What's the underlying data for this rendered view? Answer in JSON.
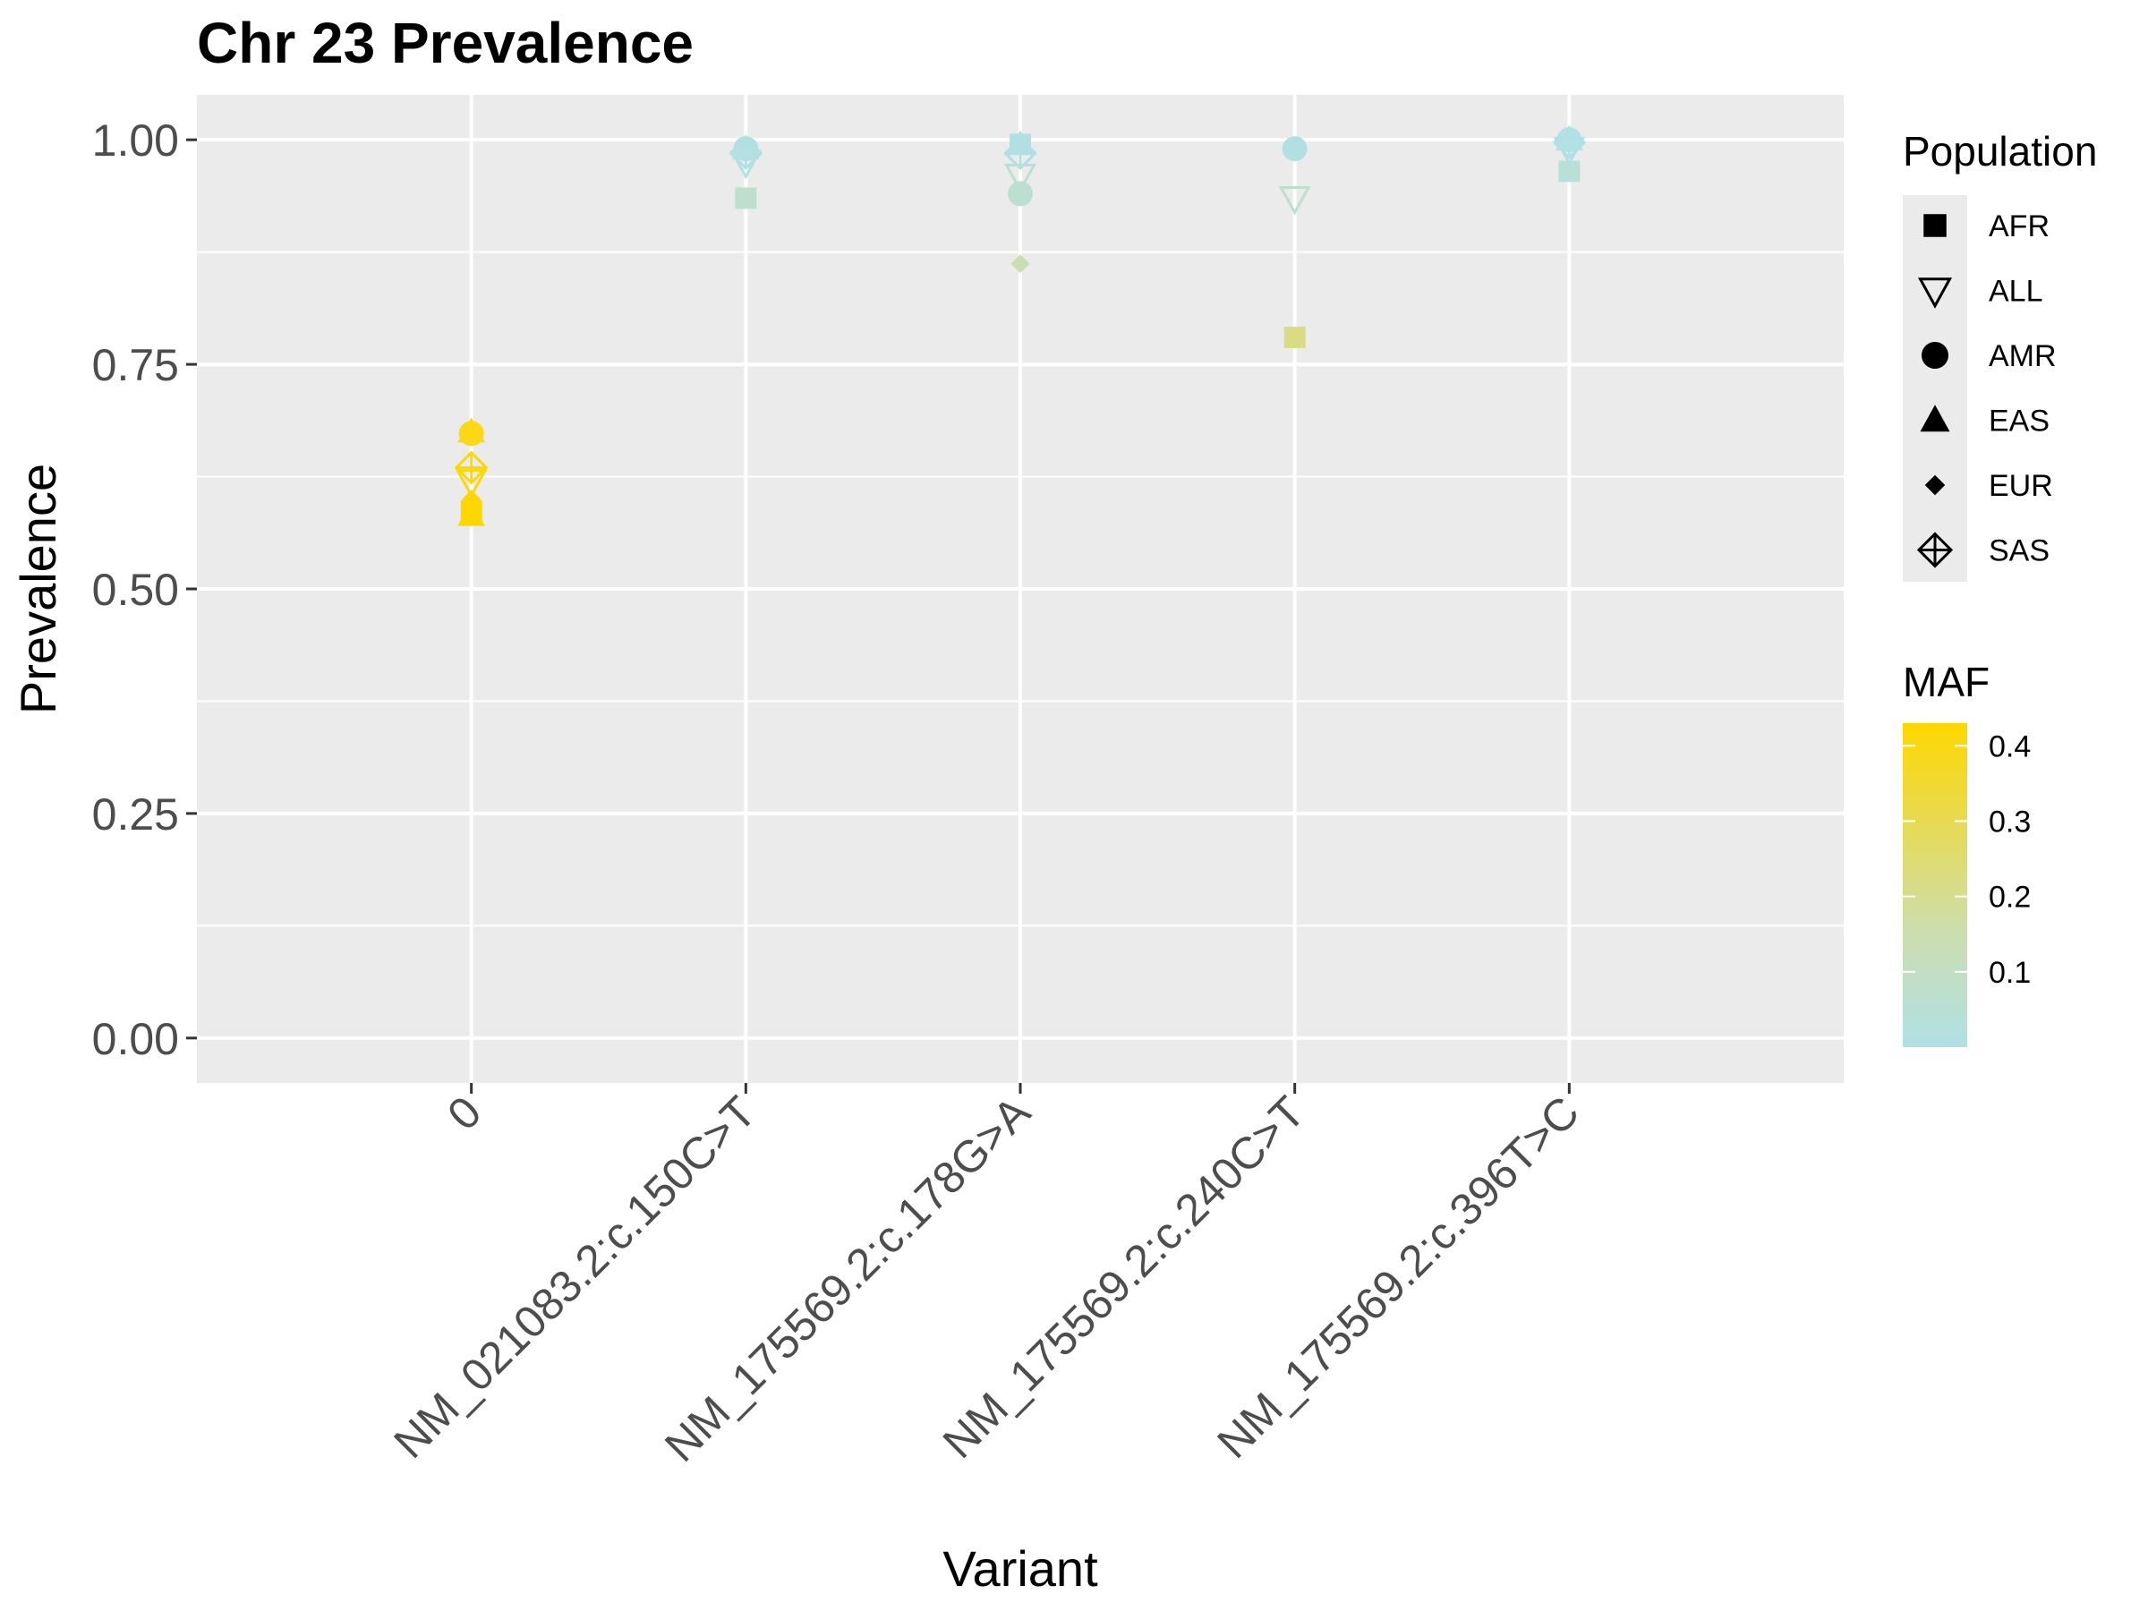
{
  "chart_data": {
    "type": "scatter",
    "title": "Chr 23 Prevalence",
    "xlabel": "Variant",
    "ylabel": "Prevalence",
    "ylim": [
      -0.05,
      1.05
    ],
    "yticks": [
      {
        "value": 0,
        "label": "0.00"
      },
      {
        "value": 0.25,
        "label": "0.25"
      },
      {
        "value": 0.5,
        "label": "0.50"
      },
      {
        "value": 0.75,
        "label": "0.75"
      },
      {
        "value": 1,
        "label": "1.00"
      }
    ],
    "grid": true,
    "categories": [
      "0",
      "NM_021083.2:c.150C>T",
      "NM_175569.2:c.178G>A",
      "NM_175569.2:c.240C>T",
      "NM_175569.2:c.396T>C"
    ],
    "legend_shape": {
      "title": "Population",
      "placement": "right",
      "items": [
        {
          "label": "AFR",
          "shape": "square"
        },
        {
          "label": "ALL",
          "shape": "triangle-down-open"
        },
        {
          "label": "AMR",
          "shape": "circle"
        },
        {
          "label": "EAS",
          "shape": "triangle"
        },
        {
          "label": "EUR",
          "shape": "diamond"
        },
        {
          "label": "SAS",
          "shape": "diamond-plus"
        }
      ]
    },
    "legend_color": {
      "title": "MAF",
      "placement": "right",
      "range": [
        0,
        0.43
      ],
      "ticks": [
        {
          "value": 0.1,
          "label": "0.1"
        },
        {
          "value": 0.2,
          "label": "0.2"
        },
        {
          "value": 0.3,
          "label": "0.3"
        },
        {
          "value": 0.4,
          "label": "0.4"
        }
      ],
      "color_low": "#B0E0E6",
      "color_mid": "#CCDEB0",
      "color_high": "#FFD700"
    },
    "points": [
      {
        "x": "0",
        "population": "EAS",
        "y": 0.675,
        "maf": 0.4
      },
      {
        "x": "0",
        "population": "AMR",
        "y": 0.673,
        "maf": 0.4
      },
      {
        "x": "0",
        "population": "SAS",
        "y": 0.635,
        "maf": 0.42
      },
      {
        "x": "0",
        "population": "ALL",
        "y": 0.62,
        "maf": 0.42
      },
      {
        "x": "0",
        "population": "EUR",
        "y": 0.6,
        "maf": 0.43
      },
      {
        "x": "0",
        "population": "AFR",
        "y": 0.587,
        "maf": 0.43
      },
      {
        "x": "0",
        "population": "EAS",
        "y": 0.582,
        "maf": 0.43
      },
      {
        "x": "NM_021083.2:c.150C>T",
        "population": "AMR",
        "y": 0.99,
        "maf": 0.01
      },
      {
        "x": "NM_021083.2:c.150C>T",
        "population": "EAS",
        "y": 0.99,
        "maf": 0.01
      },
      {
        "x": "NM_021083.2:c.150C>T",
        "population": "SAS",
        "y": 0.985,
        "maf": 0.01
      },
      {
        "x": "NM_021083.2:c.150C>T",
        "population": "EUR",
        "y": 0.985,
        "maf": 0.01
      },
      {
        "x": "NM_021083.2:c.150C>T",
        "population": "ALL",
        "y": 0.975,
        "maf": 0.02
      },
      {
        "x": "NM_021083.2:c.150C>T",
        "population": "AFR",
        "y": 0.935,
        "maf": 0.07
      },
      {
        "x": "NM_175569.2:c.178G>A",
        "population": "AFR",
        "y": 0.995,
        "maf": 0.005
      },
      {
        "x": "NM_175569.2:c.178G>A",
        "population": "EAS",
        "y": 0.995,
        "maf": 0.005
      },
      {
        "x": "NM_175569.2:c.178G>A",
        "population": "SAS",
        "y": 0.985,
        "maf": 0.01
      },
      {
        "x": "NM_175569.2:c.178G>A",
        "population": "ALL",
        "y": 0.96,
        "maf": 0.04
      },
      {
        "x": "NM_175569.2:c.178G>A",
        "population": "AMR",
        "y": 0.94,
        "maf": 0.06
      },
      {
        "x": "NM_175569.2:c.178G>A",
        "population": "EUR",
        "y": 0.862,
        "maf": 0.14
      },
      {
        "x": "NM_175569.2:c.240C>T",
        "population": "AMR",
        "y": 0.99,
        "maf": 0.01
      },
      {
        "x": "NM_175569.2:c.240C>T",
        "population": "ALL",
        "y": 0.935,
        "maf": 0.065
      },
      {
        "x": "NM_175569.2:c.240C>T",
        "population": "AFR",
        "y": 0.78,
        "maf": 0.22
      },
      {
        "x": "NM_175569.2:c.396T>C",
        "population": "AMR",
        "y": 1.0,
        "maf": 0.003
      },
      {
        "x": "NM_175569.2:c.396T>C",
        "population": "EAS",
        "y": 1.0,
        "maf": 0.003
      },
      {
        "x": "NM_175569.2:c.396T>C",
        "population": "SAS",
        "y": 0.997,
        "maf": 0.003
      },
      {
        "x": "NM_175569.2:c.396T>C",
        "population": "EUR",
        "y": 0.997,
        "maf": 0.003
      },
      {
        "x": "NM_175569.2:c.396T>C",
        "population": "ALL",
        "y": 0.99,
        "maf": 0.01
      },
      {
        "x": "NM_175569.2:c.396T>C",
        "population": "AFR",
        "y": 0.965,
        "maf": 0.035
      }
    ]
  }
}
